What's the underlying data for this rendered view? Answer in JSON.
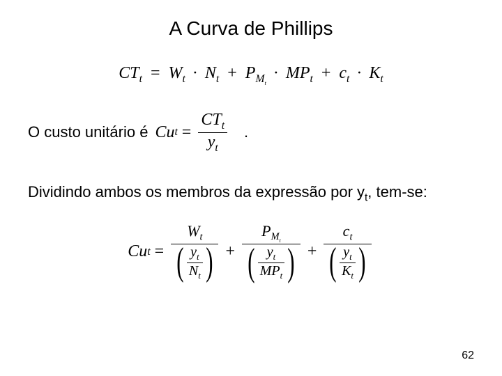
{
  "title": "A Curva de Phillips",
  "eq1": {
    "lhs_base": "CT",
    "lhs_sub": "t",
    "equals": "=",
    "t1_a": "W",
    "t1_a_sub": "t",
    "dot": "·",
    "t1_b": "N",
    "t1_b_sub": "t",
    "plus": "+",
    "t2_a": "P",
    "t2_a_sub": "M",
    "t2_a_subsub": "t",
    "t2_b": "MP",
    "t2_b_sub": "t",
    "t3_a": "c",
    "t3_a_sub": "t",
    "t3_b": "K",
    "t3_b_sub": "t"
  },
  "line2": {
    "text": "O custo unitário é",
    "eq_lhs": "Cu",
    "eq_lhs_sub": "t",
    "equals": "=",
    "num_base": "CT",
    "num_sub": "t",
    "den_base": "y",
    "den_sub": "t",
    "period": "."
  },
  "line3": {
    "text_a": "Dividindo ambos os membros da expressão por y",
    "sub": "t",
    "text_b": ", tem-se:"
  },
  "eq3": {
    "lhs": "Cu",
    "lhs_sub": "t",
    "equals": "=",
    "plus": "+",
    "term1_num": "W",
    "term1_num_sub": "t",
    "term1_den_num": "y",
    "term1_den_num_sub": "t",
    "term1_den_den": "N",
    "term1_den_den_sub": "t",
    "term2_num": "P",
    "term2_num_sub": "M",
    "term2_num_subsub": "t",
    "term2_den_num": "y",
    "term2_den_num_sub": "t",
    "term2_den_den": "MP",
    "term2_den_den_sub": "t",
    "term3_num": "c",
    "term3_num_sub": "t",
    "term3_den_num": "y",
    "term3_den_num_sub": "t",
    "term3_den_den": "K",
    "term3_den_den_sub": "t"
  },
  "pagenum": "62",
  "colors": {
    "bg": "#ffffff",
    "text": "#000000"
  },
  "fontsizes": {
    "title": 28,
    "body": 22,
    "math": 24,
    "pagenum": 16
  }
}
